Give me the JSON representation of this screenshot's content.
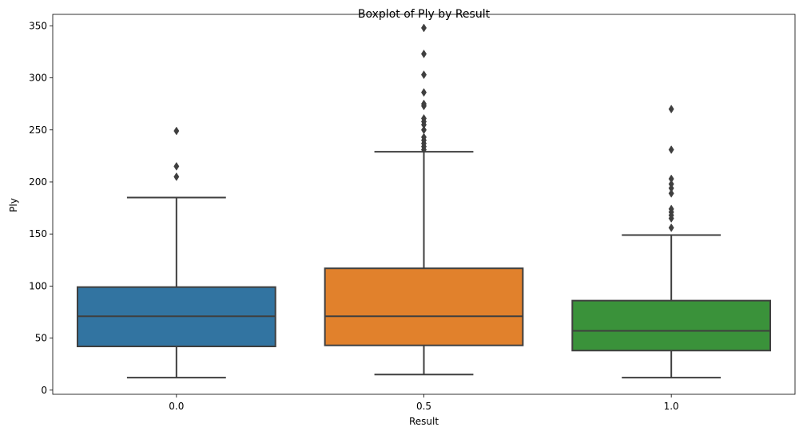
{
  "chart_data": {
    "type": "box",
    "title": "Boxplot of Ply by Result",
    "xlabel": "Result",
    "ylabel": "Ply",
    "ylim": [
      -4,
      361
    ],
    "yticks": [
      0,
      50,
      100,
      150,
      200,
      250,
      300,
      350
    ],
    "grid": false,
    "categories": [
      "0.0",
      "0.5",
      "1.0"
    ],
    "colors": [
      "#3274a1",
      "#e1812c",
      "#3a923a"
    ],
    "boxes": [
      {
        "category": "0.0",
        "whisker_low": 12,
        "q1": 42,
        "median": 71,
        "q3": 99,
        "whisker_high": 185,
        "outliers": [
          205,
          215,
          249
        ]
      },
      {
        "category": "0.5",
        "whisker_low": 15,
        "q1": 43,
        "median": 71,
        "q3": 117,
        "whisker_high": 229,
        "outliers": [
          231,
          234,
          237,
          240,
          243,
          250,
          255,
          258,
          261,
          273,
          275,
          286,
          303,
          323,
          348
        ]
      },
      {
        "category": "1.0",
        "whisker_low": 12,
        "q1": 38,
        "median": 57,
        "q3": 86,
        "whisker_high": 149,
        "outliers": [
          156,
          165,
          168,
          171,
          174,
          189,
          194,
          198,
          203,
          231,
          270
        ]
      }
    ]
  }
}
